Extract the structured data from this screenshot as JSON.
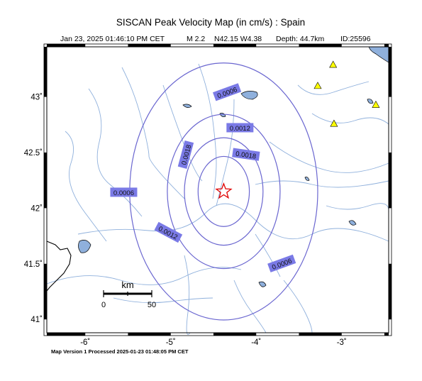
{
  "header": {
    "title": "SISCAN Peak Velocity Map (in cm/s) : Spain",
    "date": "Jan 23, 2025 01:46:10 PM CET",
    "magnitude": "M 2.2",
    "location": "N42.15 W4.38",
    "depth": "Depth: 44.7km",
    "event_id": "ID:25596"
  },
  "map": {
    "lon_range": [
      -6.45,
      -2.45
    ],
    "lat_range": [
      40.88,
      43.45
    ],
    "x_ticks": [
      {
        "value": -6,
        "label": "-6˚"
      },
      {
        "value": -5,
        "label": "-5˚"
      },
      {
        "value": -4,
        "label": "-4˚"
      },
      {
        "value": -3,
        "label": "-3˚"
      }
    ],
    "y_ticks": [
      {
        "value": 43,
        "label": "43˚"
      },
      {
        "value": 42.5,
        "label": "42.5˚"
      },
      {
        "value": 42,
        "label": "42˚"
      },
      {
        "value": 41.5,
        "label": "41.5˚"
      },
      {
        "value": 41,
        "label": "41˚"
      }
    ],
    "epicenter": {
      "lon": -4.38,
      "lat": 42.15
    },
    "stations": [
      {
        "lon": -3.1,
        "lat": 43.29
      },
      {
        "lon": -3.28,
        "lat": 43.1
      },
      {
        "lon": -3.09,
        "lat": 42.76
      },
      {
        "lon": -2.6,
        "lat": 42.93
      }
    ],
    "colors": {
      "contour": "#6a66d0",
      "label_fill": "#7a7ae6",
      "water": "#8fb0dc",
      "station": "#ffff00",
      "epicenter": "#e00000"
    }
  },
  "contours": [
    {
      "value": "0.0006",
      "radius_deg": 1.1,
      "label_angle": 0
    },
    {
      "value": "0.0012",
      "radius_deg": 0.66,
      "label_angle": 0
    },
    {
      "value": "0.0018",
      "radius_deg": 0.46,
      "label_angle": 0
    },
    {
      "value": "0.0018",
      "radius_deg": 0.3,
      "label_angle": 0
    }
  ],
  "contour_labels": [
    {
      "text": "0.0006",
      "lon": -4.34,
      "lat": 43.04,
      "rotate": -20
    },
    {
      "text": "0.0012",
      "lon": -4.19,
      "lat": 42.72,
      "rotate": 0
    },
    {
      "text": "0.0018",
      "lon": -4.82,
      "lat": 42.48,
      "rotate": -75
    },
    {
      "text": "0.0018",
      "lon": -4.12,
      "lat": 42.48,
      "rotate": 8
    },
    {
      "text": "0.0006",
      "lon": -5.55,
      "lat": 42.14,
      "rotate": 0
    },
    {
      "text": "0.0012",
      "lon": -5.03,
      "lat": 41.78,
      "rotate": 28
    },
    {
      "text": "0.0006",
      "lon": -3.7,
      "lat": 41.5,
      "rotate": -20
    }
  ],
  "scale_bar": {
    "unit": "km",
    "min_label": "0",
    "max_label": "50"
  },
  "footer": {
    "text": "Map Version 1 Processed 2025-01-23 01:48:05 PM CET"
  }
}
